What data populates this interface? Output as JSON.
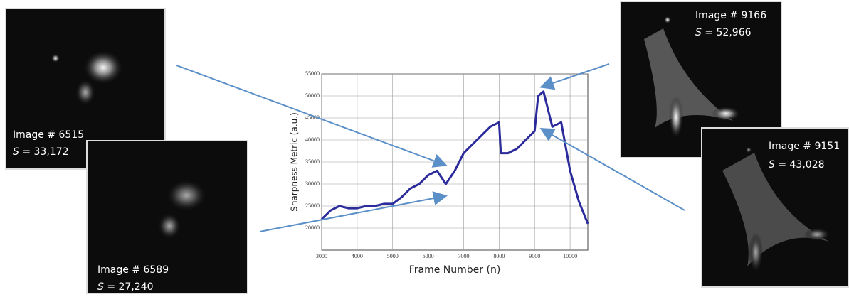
{
  "chart_data": {
    "type": "line",
    "x_label": "Frame Number (n)",
    "y_label": "Sharpness Metric (a.u.)",
    "x": [
      3000,
      3250,
      3500,
      3750,
      4000,
      4250,
      4500,
      4750,
      5000,
      5250,
      5500,
      5750,
      6000,
      6250,
      6500,
      6750,
      7000,
      7250,
      7500,
      7750,
      8000,
      8050,
      8250,
      8500,
      8750,
      9000,
      9100,
      9250,
      9500,
      9750,
      10000,
      10250,
      10500
    ],
    "series": [
      {
        "color": "#2b2b9c",
        "values": [
          22000,
          24000,
          25000,
          24500,
          24500,
          25000,
          25000,
          25500,
          25500,
          27000,
          29000,
          30000,
          32000,
          33000,
          30000,
          33000,
          37000,
          39000,
          41000,
          43000,
          44000,
          37000,
          37000,
          38000,
          40000,
          42000,
          50000,
          51000,
          43000,
          44000,
          33000,
          26000,
          21000
        ]
      }
    ],
    "xlim": [
      3000,
      10500
    ],
    "xticks": [
      3000,
      4000,
      5000,
      6000,
      7000,
      8000,
      9000,
      10000
    ],
    "ylim": [
      15000,
      55000
    ],
    "yticks": [
      20000,
      25000,
      30000,
      35000,
      40000,
      45000,
      50000,
      55000
    ],
    "grid": true
  },
  "panels": [
    {
      "label": "Image # 6515",
      "symbol": "S",
      "metric": "= 33,172"
    },
    {
      "label": "Image # 6589",
      "symbol": "S",
      "metric": "= 27,240"
    },
    {
      "label": "Image # 9166",
      "symbol": "S",
      "metric": "= 52,966"
    },
    {
      "label": "Image # 9151",
      "symbol": "S",
      "metric": "= 43,028"
    }
  ]
}
